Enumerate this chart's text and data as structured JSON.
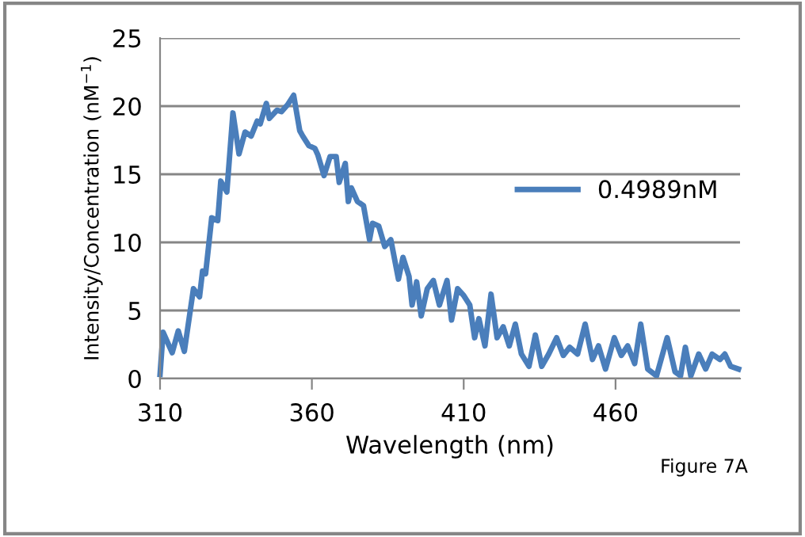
{
  "chart_data": {
    "type": "line",
    "xlabel": "Wavelength (nm)",
    "ylabel": "Intensity/Concentration (nM$^{−1}$)",
    "annotations": [
      "Figure 7A"
    ],
    "xlim": [
      310,
      501
    ],
    "xticks": [
      310,
      360,
      410,
      460
    ],
    "ylim": [
      0,
      25
    ],
    "yticks": [
      0,
      5,
      10,
      15,
      20,
      25
    ],
    "grid": "y",
    "legend": "right",
    "marker": "none",
    "line_style": "solid",
    "series": [
      {
        "name": "0.4989nM",
        "color": "#4a7ebb",
        "x": [
          310,
          311,
          314,
          316,
          318,
          321,
          323,
          324,
          325,
          327,
          329,
          330,
          332,
          334,
          336,
          338,
          340,
          342,
          343,
          345,
          346,
          348.5,
          350,
          352,
          354,
          356,
          357,
          359,
          361,
          362,
          364,
          366,
          368,
          369,
          371,
          372,
          373,
          375,
          377,
          379,
          380,
          382,
          384,
          386,
          388.5,
          390,
          392,
          393,
          394.5,
          396,
          398,
          400,
          402,
          404.5,
          406,
          408,
          410,
          412,
          413.6,
          415,
          417,
          419,
          421,
          423,
          425,
          427,
          429,
          431.5,
          433.6,
          435.7,
          438,
          440.6,
          442.8,
          444.9,
          447.5,
          450,
          452.4,
          454.4,
          456.7,
          459.6,
          461.9,
          464,
          466.3,
          468.3,
          470.6,
          473.5,
          477,
          479.6,
          481.4,
          483,
          484.8,
          487.4,
          489.7,
          491.8,
          494.4,
          496,
          497.9,
          500.5
        ],
        "values": [
          0.3,
          3.4,
          1.9,
          3.5,
          2.0,
          6.6,
          6.0,
          7.9,
          7.7,
          11.8,
          11.6,
          14.5,
          13.7,
          19.5,
          16.5,
          18.1,
          17.8,
          18.9,
          18.7,
          20.2,
          19.1,
          19.7,
          19.6,
          20.1,
          20.8,
          18.2,
          17.8,
          17.1,
          16.9,
          16.4,
          14.9,
          16.3,
          16.3,
          14.4,
          15.8,
          13.0,
          14.0,
          13.0,
          12.7,
          10.2,
          11.4,
          11.2,
          9.7,
          10.2,
          7.3,
          8.9,
          7.5,
          5.4,
          7.1,
          4.6,
          6.6,
          7.2,
          5.4,
          7.2,
          4.3,
          6.6,
          6.1,
          5.4,
          3.0,
          4.4,
          2.4,
          6.2,
          3.0,
          3.8,
          2.4,
          4.0,
          1.8,
          0.9,
          3.2,
          0.9,
          1.8,
          3.0,
          1.7,
          2.3,
          1.8,
          4.0,
          1.4,
          2.4,
          0.7,
          3.0,
          1.7,
          2.4,
          1.1,
          4.0,
          0.7,
          0.2,
          3.0,
          0.5,
          0.2,
          2.3,
          0.2,
          1.8,
          0.7,
          1.8,
          1.4,
          1.8,
          0.9,
          0.7
        ]
      }
    ]
  }
}
